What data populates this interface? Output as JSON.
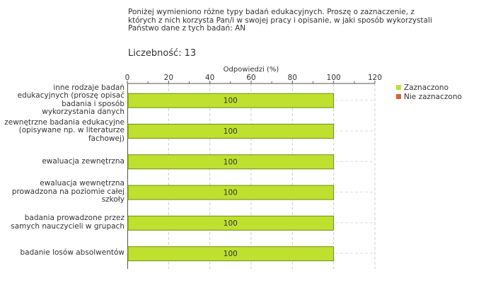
{
  "question": {
    "lines": [
      "Poniżej wymieniono różne typy badań edukacyjnych. Proszę o zaznaczenie, z",
      "których z nich korzysta Pan/i w swojej pracy i opisanie, w jaki sposób wykorzystali",
      "Państwo dane z tych badań:  AN"
    ]
  },
  "count": {
    "label": "Liczebność:",
    "value": "13"
  },
  "colors": {
    "selected": "#bfe02e",
    "selected_border": "#6c8f10",
    "not_selected": "#e06030",
    "grid": "#cccccc",
    "tick_red": "#cc3333"
  },
  "chart_data": {
    "type": "bar",
    "orientation": "horizontal",
    "xlabel": "Odpowiedzi (%)",
    "xlim": [
      0,
      120
    ],
    "xticks": [
      "0",
      "20",
      "40",
      "60",
      "80",
      "100",
      "120"
    ],
    "grid": true,
    "legend_position": "right",
    "categories": [
      [
        "inne rodzaje badań",
        "edukacyjnych (proszę opisać",
        "badania i sposób",
        "wykorzystania danych"
      ],
      [
        "zewnętrzne badania edukacyjne",
        "(opisywane np. w literaturze",
        "fachowej)"
      ],
      [
        "ewaluacja zewnętrzna"
      ],
      [
        "ewaluacja wewnętrzna",
        "prowadzona na poziomie całej",
        "szkoły"
      ],
      [
        "badania prowadzone przez",
        "samych nauczycieli w grupach"
      ],
      [
        "badanie losów absolwentów"
      ]
    ],
    "series": [
      {
        "name": "Zaznaczono",
        "values": [
          100,
          100,
          100,
          100,
          100,
          100
        ],
        "labels": [
          "100",
          "100",
          "100",
          "100",
          "100",
          "100"
        ]
      },
      {
        "name": "Nie zaznaczono",
        "values": [
          0,
          0,
          0,
          0,
          0,
          0
        ]
      }
    ]
  }
}
